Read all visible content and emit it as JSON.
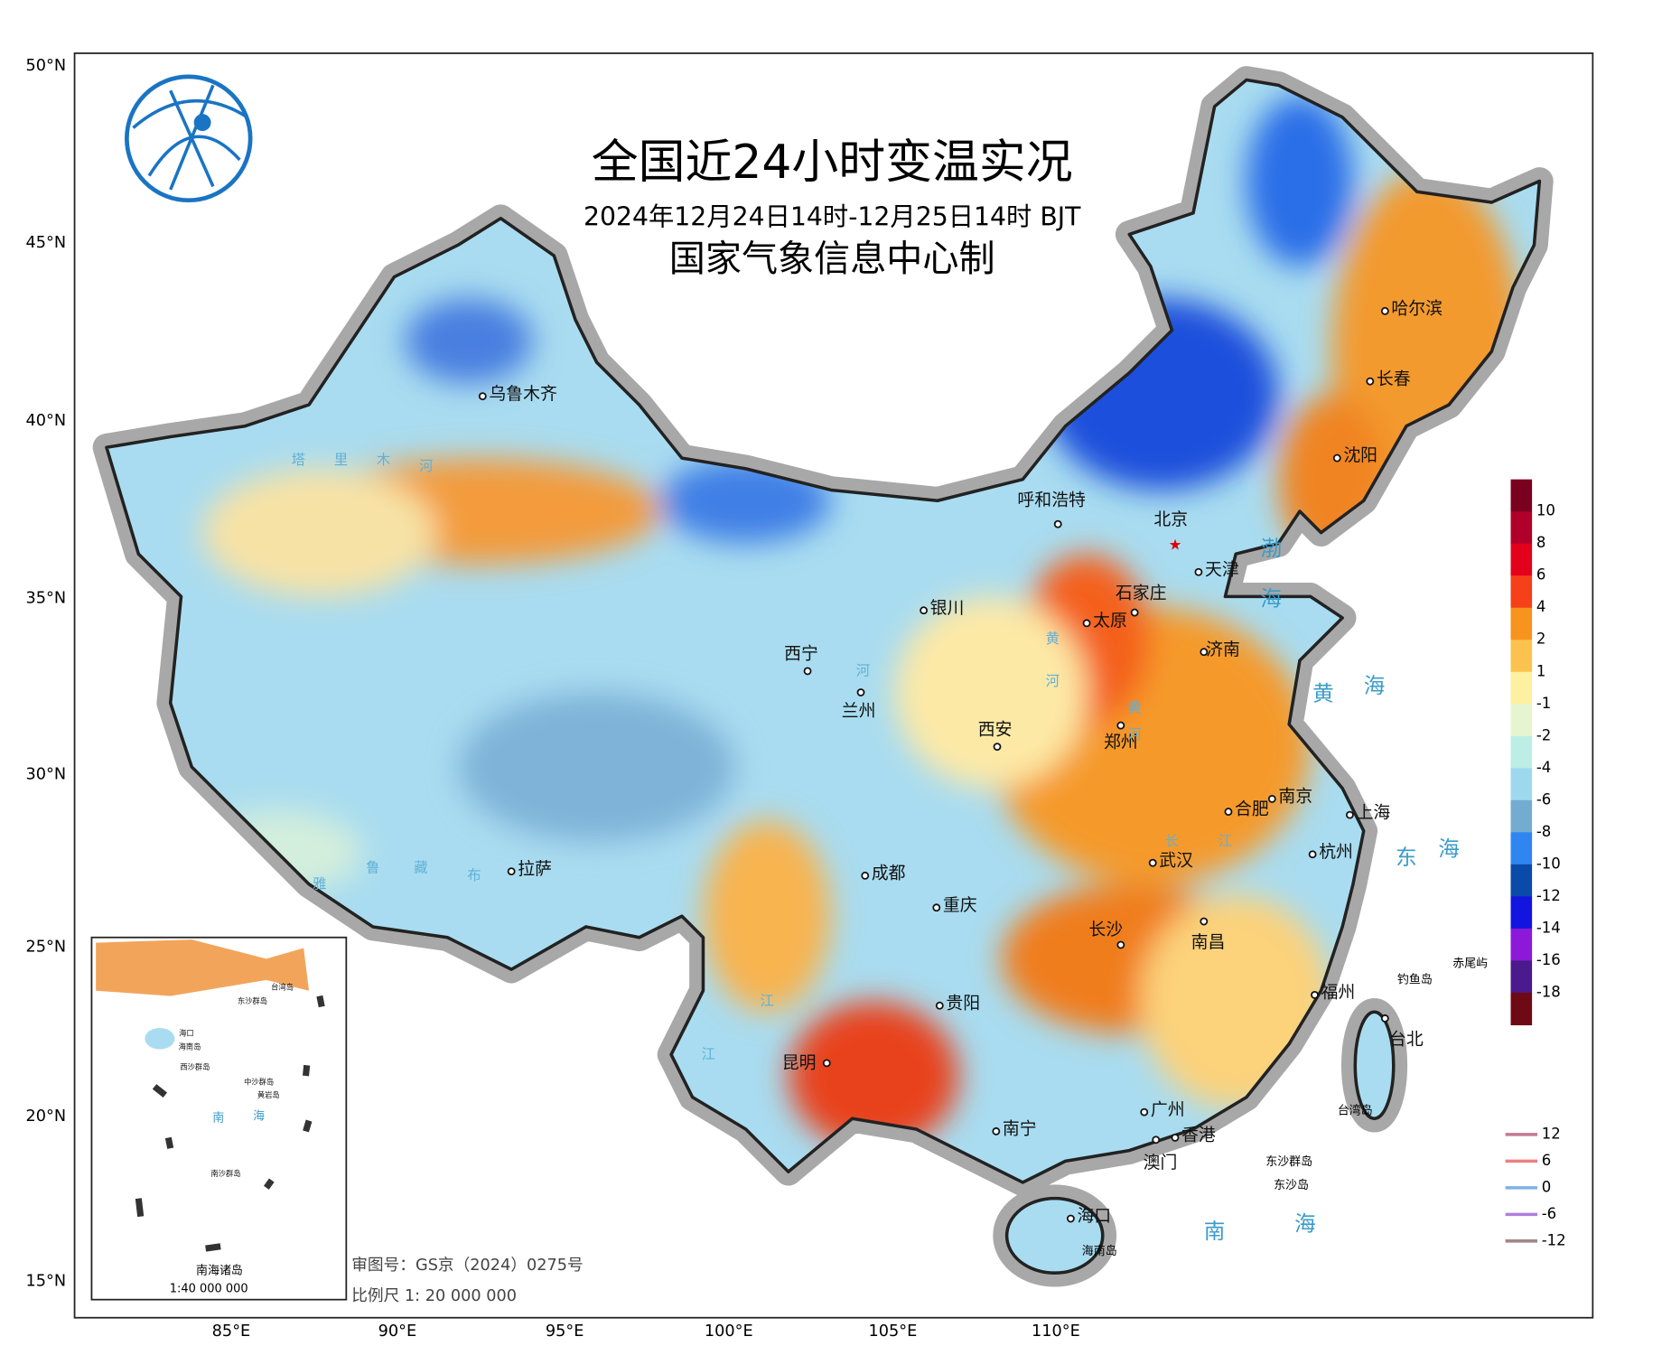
{
  "title": "全国近24小时变温实况",
  "subtitle": "2024年12月24日14时-12月25日14时 BJT",
  "producer": "国家气象信息中心制",
  "axes": {
    "lat": [
      "50°N",
      "45°N",
      "40°N",
      "35°N",
      "30°N",
      "25°N",
      "20°N",
      "15°N"
    ],
    "lon": [
      "85°E",
      "90°E",
      "95°E",
      "100°E",
      "105°E",
      "110°E"
    ]
  },
  "cities": [
    "乌鲁木齐",
    "呼和浩特",
    "北京",
    "天津",
    "石家庄",
    "银川",
    "太原",
    "济南",
    "西宁",
    "兰州",
    "西安",
    "郑州",
    "合肥",
    "南京",
    "上海",
    "拉萨",
    "成都",
    "武汉",
    "杭州",
    "重庆",
    "长沙",
    "南昌",
    "贵阳",
    "福州",
    "台北",
    "昆明",
    "广州",
    "南宁",
    "香港",
    "澳门",
    "海口",
    "哈尔滨",
    "长春",
    "沈阳"
  ],
  "seas": [
    "渤",
    "海",
    "黄",
    "海",
    "东",
    "海",
    "南",
    "海"
  ],
  "rivers": [
    "塔",
    "里",
    "木",
    "河",
    "黄",
    "河",
    "河",
    "黄",
    "河",
    "雅",
    "鲁",
    "藏",
    "布",
    "江",
    "江",
    "长",
    "江"
  ],
  "islands": [
    "赤尾屿",
    "钓鱼岛",
    "台湾岛",
    "东沙群岛",
    "东沙岛",
    "海南岛"
  ],
  "legend": {
    "values": [
      10,
      8,
      6,
      4,
      2,
      1,
      -1,
      -2,
      -4,
      -6,
      -8,
      -10,
      -12,
      -14,
      -16,
      -18
    ]
  },
  "contour_legend": [
    12,
    6,
    0,
    -6,
    -12
  ],
  "inset": {
    "title": "南海诸岛",
    "scale": "1:40 000 000",
    "labels": [
      "海口",
      "海南岛",
      "东沙群岛",
      "台湾岛",
      "西沙群岛",
      "中沙群岛",
      "黄岩岛",
      "南",
      "海",
      "南沙群岛"
    ]
  },
  "footer": {
    "approval": "审图号：GS京（2024）0275号",
    "scale": "比例尺 1: 20 000 000"
  }
}
